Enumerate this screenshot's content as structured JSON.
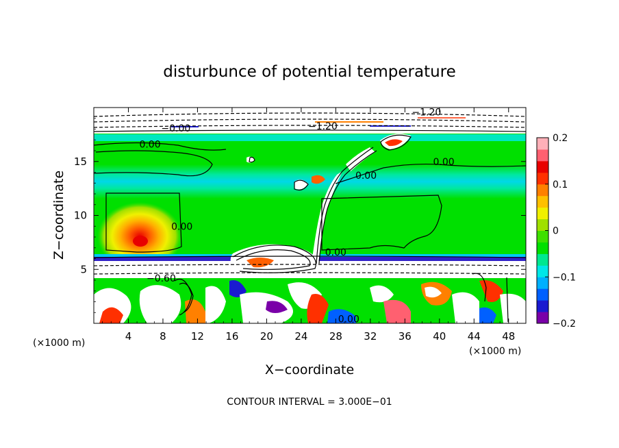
{
  "chart_data": {
    "type": "heatmap",
    "title": "disturbunce of potential temperature",
    "xlabel": "X−coordinate",
    "ylabel": "Z−coordinate",
    "x_unit_left": "(×1000 m)",
    "x_unit_right": "(×1000 m)",
    "footer": "CONTOUR INTERVAL = 3.000E−01",
    "xlim": [
      0,
      50
    ],
    "ylim": [
      0,
      20
    ],
    "x_ticks": [
      4,
      8,
      12,
      16,
      20,
      24,
      28,
      32,
      36,
      40,
      44,
      48
    ],
    "y_ticks": [
      5,
      10,
      15
    ],
    "colorbar": {
      "min": -0.2,
      "max": 0.2,
      "ticks": [
        0.2,
        0.1,
        0,
        -0.1,
        -0.2
      ],
      "tick_labels": [
        "0.2",
        "0.1",
        "0",
        "−0.1",
        "−0.2"
      ],
      "colors": [
        "#7a00a8",
        "#1a1ad0",
        "#0060ff",
        "#00b0ff",
        "#00e8e8",
        "#00e890",
        "#00e000",
        "#3ee000",
        "#a0e000",
        "#f0f000",
        "#ffc000",
        "#ff8000",
        "#ff3000",
        "#e80000",
        "#ff6070",
        "#ffb0b8"
      ]
    },
    "contour_labels": [
      {
        "x": 6.5,
        "y": 16.6,
        "text": "0.00"
      },
      {
        "x": 40.5,
        "y": 15.0,
        "text": "0.00"
      },
      {
        "x": 31.5,
        "y": 13.7,
        "text": "0.00"
      },
      {
        "x": 10.2,
        "y": 9.0,
        "text": "0.00"
      },
      {
        "x": 28.0,
        "y": 6.6,
        "text": "0.00"
      },
      {
        "x": 7.8,
        "y": 4.2,
        "text": "−0.60"
      },
      {
        "x": 29.5,
        "y": 0.4,
        "text": "0.00"
      },
      {
        "x": 26.5,
        "y": 18.3,
        "text": "−1.20"
      },
      {
        "x": 38.5,
        "y": 19.6,
        "text": "−1.20"
      },
      {
        "x": 9.5,
        "y": 18.1,
        "text": "−0.00"
      }
    ]
  }
}
